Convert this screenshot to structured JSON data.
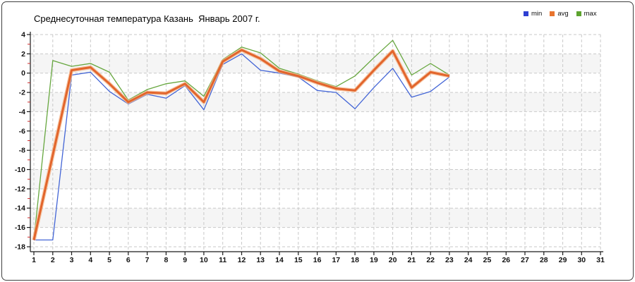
{
  "panel": {
    "background": "#ffffff",
    "border_color": "#3f3f3f"
  },
  "title": "Среднесуточная температура Казань  Январь 2007 г.",
  "legend": {
    "items": [
      {
        "label": "min",
        "color": "#2e3fd2"
      },
      {
        "label": "avg",
        "color": "#e8742e"
      },
      {
        "label": "max",
        "color": "#5ca32e"
      }
    ]
  },
  "chart_data": {
    "type": "line",
    "title": "Среднесуточная температура Казань  Январь 2007 г.",
    "xlabel": "",
    "ylabel": "",
    "xlim": [
      1,
      31
    ],
    "ylim": [
      -18,
      4
    ],
    "y_major_step": 2,
    "x_tick_labels": [
      "1",
      "2",
      "3",
      "4",
      "5",
      "6",
      "7",
      "8",
      "9",
      "10",
      "11",
      "12",
      "13",
      "14",
      "15",
      "16",
      "17",
      "18",
      "19",
      "20",
      "21",
      "22",
      "23",
      "24",
      "25",
      "26",
      "27",
      "28",
      "29",
      "30",
      "31"
    ],
    "y_tick_labels": [
      "4",
      "2",
      "0",
      "-2",
      "-4",
      "-6",
      "-8",
      "-10",
      "-12",
      "-14",
      "-16",
      "-18"
    ],
    "grid": "dashed",
    "legend_position": "top-right",
    "x": [
      1,
      2,
      3,
      4,
      5,
      6,
      7,
      8,
      9,
      10,
      11,
      12,
      13,
      14,
      15,
      16,
      17,
      18,
      19,
      20,
      21,
      22,
      23
    ],
    "series": [
      {
        "name": "min",
        "color": "#4365d6",
        "width": 1.3,
        "values": [
          -17.3,
          -17.3,
          -0.2,
          0.1,
          -1.9,
          -3.2,
          -2.2,
          -2.6,
          -1.3,
          -3.8,
          0.9,
          2.0,
          0.3,
          0.0,
          -0.4,
          -1.8,
          -2.0,
          -3.7,
          -1.5,
          0.5,
          -2.5,
          -1.9,
          -0.4
        ]
      },
      {
        "name": "avg",
        "color": "#e2652c",
        "halo_color": "#f4b58a",
        "width": 3,
        "values": [
          -17.3,
          -8.5,
          0.3,
          0.6,
          -1.1,
          -3.0,
          -2.0,
          -2.1,
          -1.1,
          -3.0,
          1.2,
          2.4,
          1.5,
          0.2,
          -0.3,
          -1.0,
          -1.6,
          -1.8,
          0.3,
          2.3,
          -1.5,
          0.1,
          -0.3
        ]
      },
      {
        "name": "max",
        "color": "#67a73f",
        "width": 1.3,
        "values": [
          -17.3,
          1.3,
          0.7,
          1.0,
          0.1,
          -2.8,
          -1.7,
          -1.1,
          -0.8,
          -2.4,
          1.4,
          2.7,
          2.1,
          0.5,
          -0.1,
          -0.8,
          -1.4,
          -0.3,
          1.6,
          3.4,
          -0.2,
          1.0,
          -0.2
        ]
      }
    ],
    "style": {
      "band_fill": "#f5f5f5",
      "grid_color": "#c9c9c9",
      "axis_color": "#1a1a1a",
      "minor_tick_color": "#cc2a2a",
      "tick_label_color": "#111111"
    }
  }
}
